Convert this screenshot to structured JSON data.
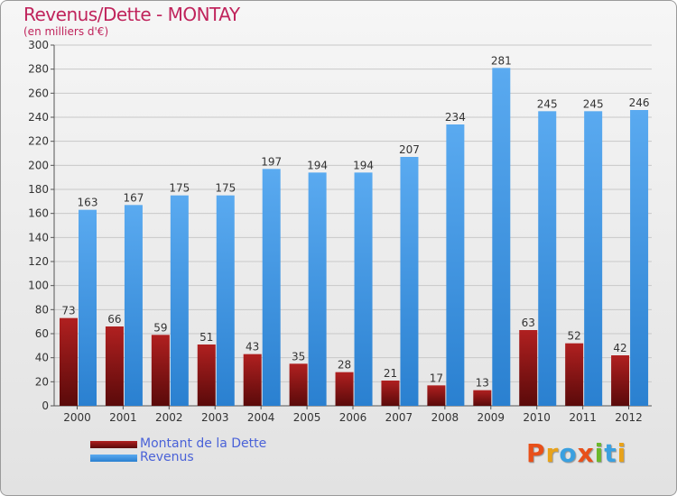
{
  "title": "Revenus/Dette - MONTAY",
  "subtitle": "(en milliers d'€)",
  "logo": "Proxiti",
  "colors": {
    "title": "#c0245c",
    "dette_top": "#b02020",
    "dette_bottom": "#5a0a0a",
    "revenus_top": "#5aaaf0",
    "revenus_bottom": "#2a80d0",
    "legend_text": "#4a62d8"
  },
  "chart_data": {
    "type": "bar",
    "categories": [
      "2000",
      "2001",
      "2002",
      "2003",
      "2004",
      "2005",
      "2006",
      "2007",
      "2008",
      "2009",
      "2010",
      "2011",
      "2012"
    ],
    "series": [
      {
        "name": "Montant de la Dette",
        "values": [
          73,
          66,
          59,
          51,
          43,
          35,
          28,
          21,
          17,
          13,
          63,
          52,
          42
        ]
      },
      {
        "name": "Revenus",
        "values": [
          163,
          167,
          175,
          175,
          197,
          194,
          194,
          207,
          234,
          281,
          245,
          245,
          246
        ]
      }
    ],
    "ylim": [
      0,
      300
    ],
    "yticks": [
      0,
      20,
      40,
      60,
      80,
      100,
      120,
      140,
      160,
      180,
      200,
      220,
      240,
      260,
      280,
      300
    ],
    "grid": true,
    "legend_position": "bottom-left"
  }
}
